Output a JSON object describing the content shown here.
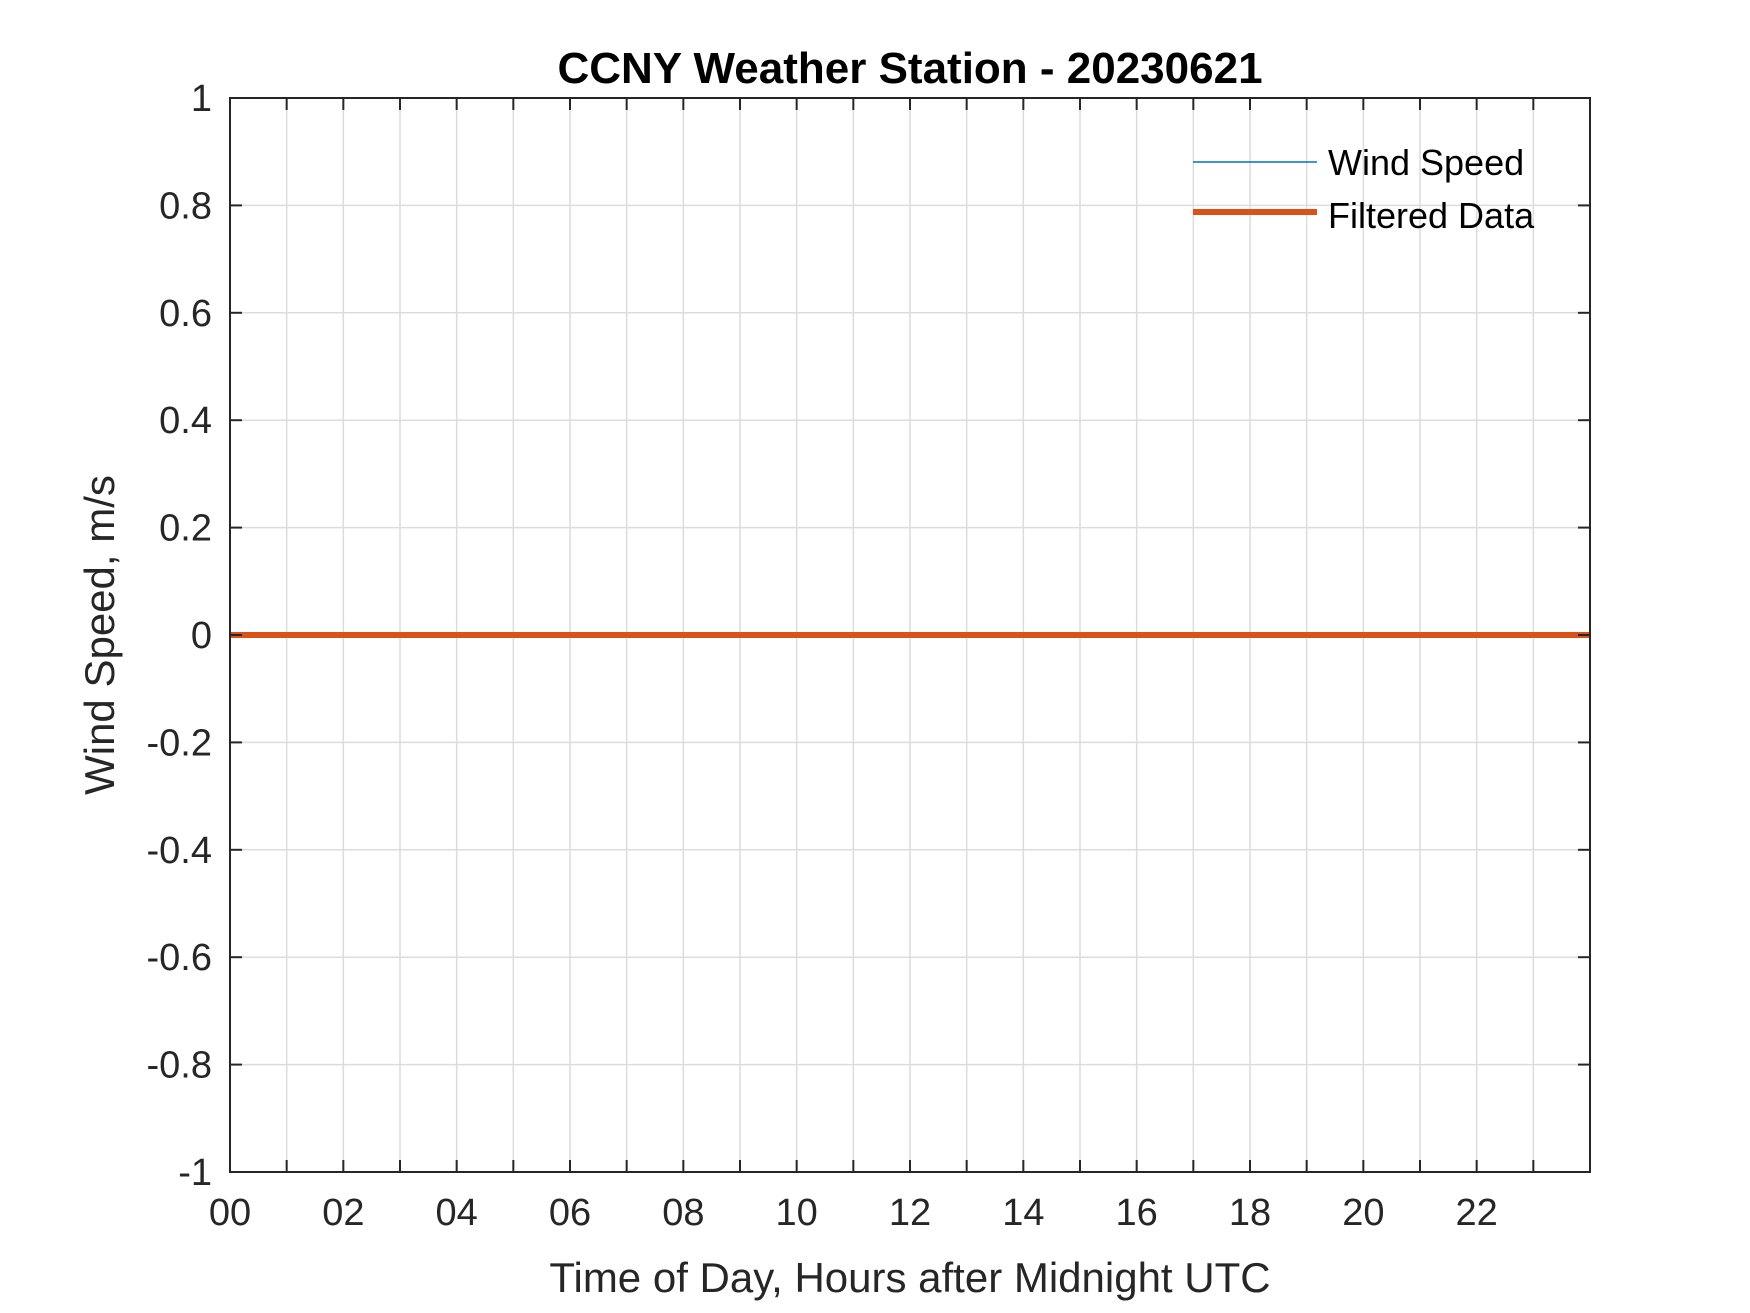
{
  "chart_data": {
    "type": "line",
    "title": "CCNY Weather Station - 20230621",
    "xlabel": "Time of Day, Hours after Midnight UTC",
    "ylabel": "Wind Speed, m/s",
    "xlim": [
      0,
      24
    ],
    "ylim": [
      -1,
      1
    ],
    "x_ticks": [
      "00",
      "02",
      "04",
      "06",
      "08",
      "10",
      "12",
      "14",
      "16",
      "18",
      "20",
      "22"
    ],
    "x_tick_values": [
      0,
      2,
      4,
      6,
      8,
      10,
      12,
      14,
      16,
      18,
      20,
      22
    ],
    "x_grid_step": 1,
    "y_ticks": [
      "1",
      "0.8",
      "0.6",
      "0.4",
      "0.2",
      "0",
      "-0.2",
      "-0.4",
      "-0.6",
      "-0.8",
      "-1"
    ],
    "y_tick_values": [
      1,
      0.8,
      0.6,
      0.4,
      0.2,
      0,
      -0.2,
      -0.4,
      -0.6,
      -0.8,
      -1
    ],
    "grid": true,
    "legend_position": "top-right",
    "series": [
      {
        "name": "Wind Speed",
        "color": "#0072BD",
        "x": [],
        "y": []
      },
      {
        "name": "Filtered Data",
        "color": "#D95319",
        "x": [
          0,
          24
        ],
        "y": [
          0,
          0
        ]
      }
    ]
  }
}
